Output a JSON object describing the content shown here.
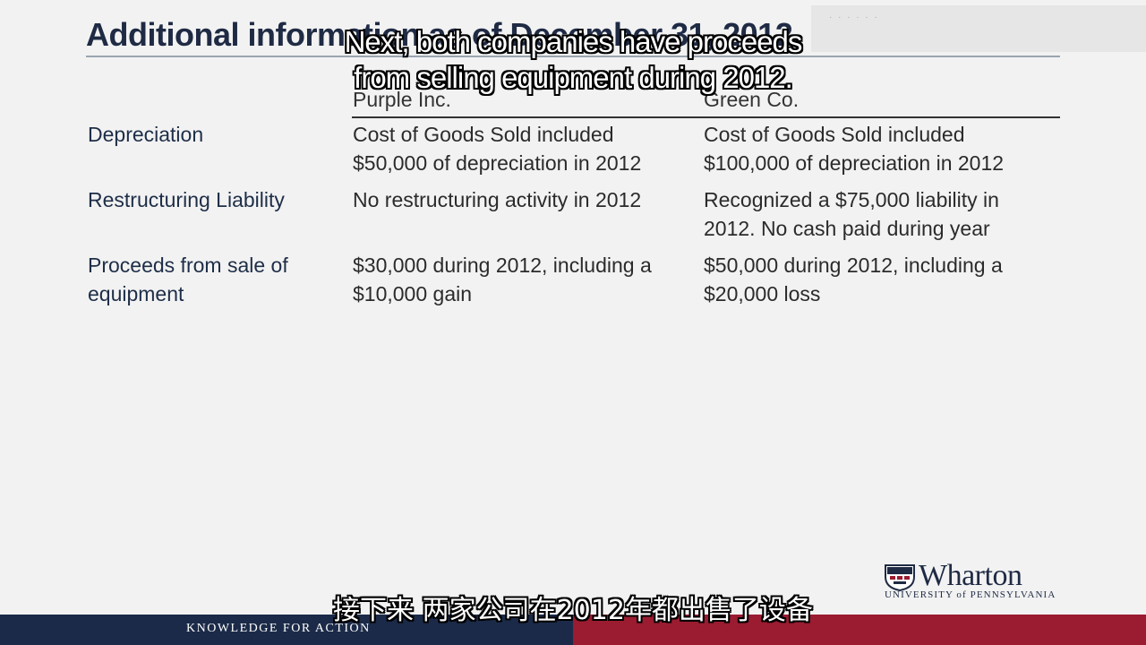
{
  "slide": {
    "title": "Additional information as of December 31, 2012",
    "columns": [
      "Purple Inc.",
      "Green Co."
    ],
    "rows": [
      {
        "label": [
          "Depreciation"
        ],
        "purple": [
          "Cost of Goods Sold included",
          "$50,000 of depreciation in 2012"
        ],
        "green": [
          "Cost of Goods Sold included",
          "$100,000 of depreciation in 2012"
        ]
      },
      {
        "label": [
          "Restructuring Liability"
        ],
        "purple": [
          "No restructuring activity in 2012"
        ],
        "green": [
          "Recognized a $75,000 liability in",
          "2012.  No cash paid during year"
        ]
      },
      {
        "label": [
          "Proceeds from sale of",
          "equipment"
        ],
        "purple": [
          "$30,000 during 2012, including a",
          "$10,000 gain"
        ],
        "green": [
          "$50,000 during 2012, including a",
          "$20,000 loss"
        ]
      }
    ]
  },
  "subtitles": {
    "english": [
      "Next, both companies have proceeds",
      "from selling equipment during 2012."
    ],
    "chinese": "接下来 两家公司在2012年都出售了设备"
  },
  "branding": {
    "logo_word": "Wharton",
    "logo_university": "UNIVERSITY of PENNSYLVANIA",
    "footer_text": "KNOWLEDGE FOR ACTION"
  },
  "colors": {
    "navy": "#1b2a48",
    "crimson": "#9b1b30"
  }
}
